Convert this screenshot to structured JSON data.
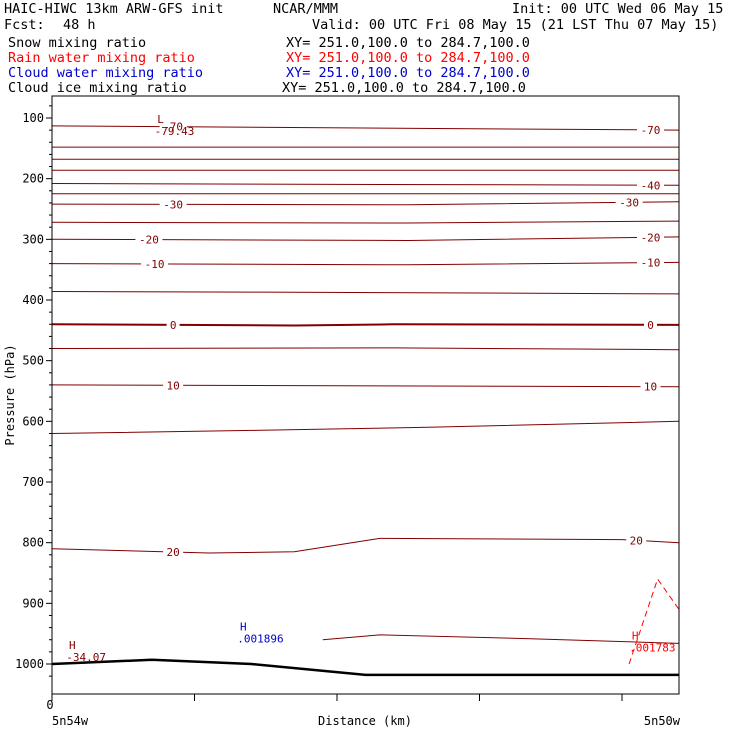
{
  "header": {
    "model_line": "HAIC-HIWC 13km ARW-GFS init",
    "org": "NCAR/MMM",
    "init": "Init: 00 UTC Wed 06 May 15",
    "fcst_label": "Fcst:",
    "fcst_value": "48 h",
    "valid": "Valid: 00 UTC Fri 08 May 15 (21 LST Thu 07 May 15)",
    "fields": [
      {
        "name": "Snow mixing ratio",
        "xy": "XY= 251.0,100.0 to 284.7,100.0",
        "color": "#000000"
      },
      {
        "name": "Rain water mixing ratio",
        "xy": "XY= 251.0,100.0 to 284.7,100.0",
        "color": "#ff0000"
      },
      {
        "name": "Cloud water mixing ratio",
        "xy": "XY= 251.0,100.0 to 284.7,100.0",
        "color": "#0000cc"
      },
      {
        "name": "Cloud ice mixing ratio",
        "xy": "XY= 251.0,100.0 to 284.7,100.0",
        "color": "#000000"
      }
    ]
  },
  "chart_data": {
    "type": "line",
    "ylabel": "Pressure (hPa)",
    "xlabel": "Distance (km)",
    "x_origin_label": "0",
    "x_left_label": "5n54w",
    "x_right_label": "5n50w",
    "ylim": [
      1035,
      60
    ],
    "yticks": [
      100,
      200,
      300,
      400,
      500,
      600,
      700,
      800,
      900,
      1000
    ],
    "xlim": [
      0,
      4.4
    ],
    "xtick_count": 5,
    "line_color": "#800000",
    "isotherms": [
      {
        "label": "-70",
        "pts": [
          [
            0,
            113
          ],
          [
            4.4,
            120
          ]
        ],
        "labels_at": [
          [
            0.85,
            "left"
          ],
          [
            4.2,
            "right"
          ]
        ]
      },
      {
        "label": "",
        "pts": [
          [
            0,
            148
          ],
          [
            4.4,
            148
          ]
        ]
      },
      {
        "label": "",
        "pts": [
          [
            0,
            168
          ],
          [
            4.4,
            168
          ]
        ]
      },
      {
        "label": "",
        "pts": [
          [
            0,
            186
          ],
          [
            4.4,
            186
          ]
        ]
      },
      {
        "label": "-40",
        "pts": [
          [
            0,
            208
          ],
          [
            4.4,
            211
          ]
        ],
        "labels_at": [
          [
            4.2,
            "right"
          ]
        ]
      },
      {
        "label": "",
        "pts": [
          [
            0,
            225
          ],
          [
            4.4,
            225
          ]
        ]
      },
      {
        "label": "-30",
        "pts": [
          [
            0,
            242
          ],
          [
            2.5,
            243
          ],
          [
            4.4,
            238
          ]
        ],
        "labels_at": [
          [
            0.85,
            "left"
          ],
          [
            4.05,
            "right"
          ]
        ]
      },
      {
        "label": "",
        "pts": [
          [
            0,
            272
          ],
          [
            2.5,
            273
          ],
          [
            4.4,
            270
          ]
        ]
      },
      {
        "label": "-20",
        "pts": [
          [
            0,
            300
          ],
          [
            2.5,
            302
          ],
          [
            4.4,
            296
          ]
        ],
        "labels_at": [
          [
            0.68,
            "left"
          ],
          [
            4.2,
            "right"
          ]
        ]
      },
      {
        "label": "-10",
        "pts": [
          [
            0,
            340
          ],
          [
            2.5,
            342
          ],
          [
            4.4,
            338
          ]
        ],
        "labels_at": [
          [
            0.72,
            "left"
          ],
          [
            4.2,
            "right"
          ]
        ]
      },
      {
        "label": "",
        "pts": [
          [
            0,
            386
          ],
          [
            1.5,
            387
          ],
          [
            4.4,
            390
          ]
        ]
      },
      {
        "label": "0",
        "pts": [
          [
            0,
            440
          ],
          [
            1.7,
            442
          ],
          [
            2.4,
            440
          ],
          [
            4.4,
            441
          ]
        ],
        "labels_at": [
          [
            0.85,
            "left"
          ],
          [
            4.2,
            "right"
          ]
        ],
        "bold": true
      },
      {
        "label": "",
        "pts": [
          [
            0,
            480
          ],
          [
            2.4,
            479
          ],
          [
            4.4,
            482
          ]
        ]
      },
      {
        "label": "10",
        "pts": [
          [
            0,
            540
          ],
          [
            4.4,
            543
          ]
        ],
        "labels_at": [
          [
            0.85,
            "left"
          ],
          [
            4.2,
            "right"
          ]
        ]
      },
      {
        "label": "",
        "pts": [
          [
            0,
            620
          ],
          [
            1.4,
            615
          ],
          [
            2.6,
            610
          ],
          [
            4.4,
            600
          ]
        ]
      },
      {
        "label": "20",
        "pts": [
          [
            0,
            810
          ],
          [
            1.1,
            817
          ],
          [
            1.7,
            815
          ],
          [
            2.3,
            793
          ],
          [
            4.0,
            795
          ],
          [
            4.4,
            800
          ]
        ],
        "labels_at": [
          [
            0.85,
            "left"
          ],
          [
            4.1,
            "right"
          ]
        ]
      },
      {
        "label": "",
        "pts": [
          [
            1.9,
            960
          ],
          [
            2.3,
            952
          ],
          [
            3.3,
            958
          ],
          [
            4.4,
            966
          ]
        ]
      }
    ],
    "terrain": [
      [
        0,
        1000
      ],
      [
        0.7,
        993
      ],
      [
        1.4,
        1000
      ],
      [
        2.2,
        1018
      ],
      [
        4.4,
        1018
      ]
    ],
    "rain_contour": [
      [
        4.05,
        1000
      ],
      [
        4.25,
        860
      ],
      [
        4.4,
        910
      ]
    ],
    "annotations": [
      {
        "symbol": "L",
        "value": "-79.43",
        "x": 0.72,
        "y": 108,
        "color": "#800000"
      },
      {
        "symbol": "H",
        "value": "-34.07",
        "x": 0.1,
        "y": 975,
        "color": "#800000"
      },
      {
        "symbol": "H",
        "value": ".001896",
        "x": 1.3,
        "y": 945,
        "color": "#0000cc"
      },
      {
        "symbol": "H",
        "value": ".001783",
        "x": 4.05,
        "y": 960,
        "color": "#ff0000"
      }
    ]
  }
}
